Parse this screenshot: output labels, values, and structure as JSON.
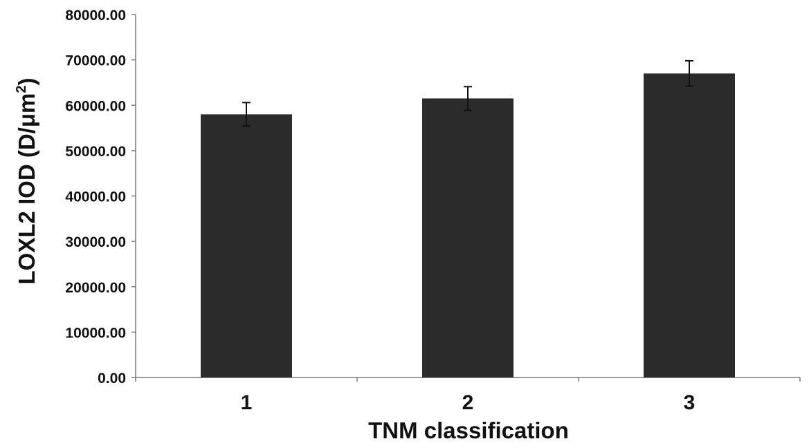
{
  "chart_data": {
    "type": "bar",
    "title": "",
    "xlabel": "TNM classification",
    "ylabel_main": "LOXL2 IOD (D/μm",
    "ylabel_sup": "2",
    "ylabel_close": ")",
    "categories": [
      "1",
      "2",
      "3"
    ],
    "values": [
      58000,
      61500,
      67000
    ],
    "error": [
      2600,
      2600,
      2800
    ],
    "ylim": [
      0,
      80000
    ],
    "yticks": [
      0,
      10000,
      20000,
      30000,
      40000,
      50000,
      60000,
      70000,
      80000
    ],
    "ytick_labels": [
      "0.00",
      "10000.00",
      "20000.00",
      "30000.00",
      "40000.00",
      "50000.00",
      "60000.00",
      "70000.00",
      "80000.00"
    ],
    "grid": false,
    "legend": "none",
    "colors": {
      "bar": "#2b2b2b",
      "axis": "#7a7a7a",
      "text": "#111111"
    }
  }
}
